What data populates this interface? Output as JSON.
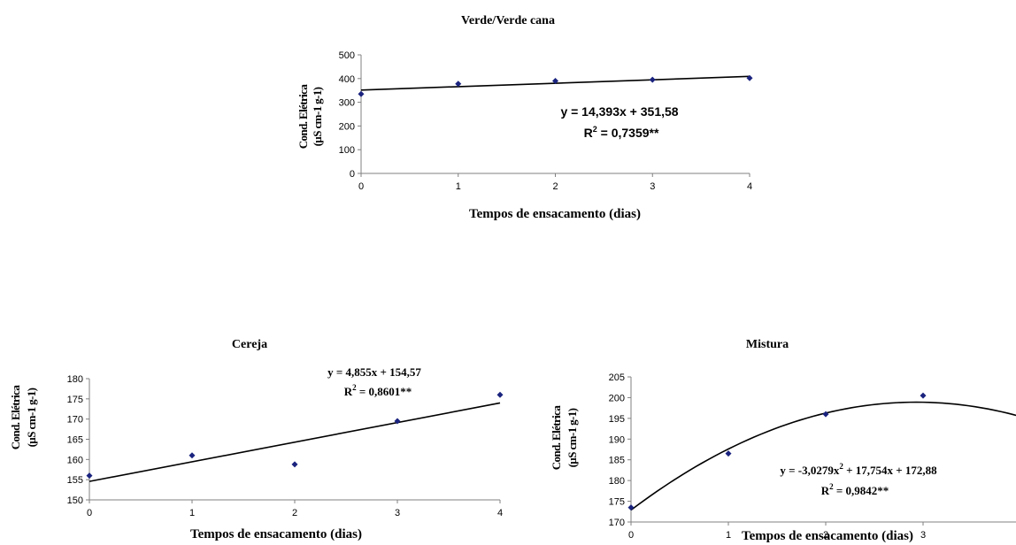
{
  "chart_data": [
    {
      "type": "scatter",
      "title": "Verde/Verde cana",
      "xlabel": "Tempos de ensacamento (dias)",
      "ylabel": [
        "Cond. Elétrica",
        "(µS cm-1 g-1)"
      ],
      "xlim": [
        0,
        4
      ],
      "ylim": [
        0,
        500
      ],
      "xticks": [
        0,
        1,
        2,
        3,
        4
      ],
      "yticks": [
        0,
        100,
        200,
        300,
        400,
        500
      ],
      "points": [
        {
          "x": 0,
          "y": 335
        },
        {
          "x": 1,
          "y": 378
        },
        {
          "x": 2,
          "y": 390
        },
        {
          "x": 3,
          "y": 395
        },
        {
          "x": 4,
          "y": 402
        }
      ],
      "trend": {
        "type": "linear",
        "coefficients": [
          351.58,
          14.393
        ]
      },
      "equation": "y = 14,393x + 351,58",
      "r2_value": " = 0,7359**",
      "equation_font": "sans"
    },
    {
      "type": "scatter",
      "title": "Cereja",
      "xlabel": "Tempos de ensacamento (dias)",
      "ylabel": [
        "Cond. Elétrica",
        "(µS cm-1 g-1)"
      ],
      "xlim": [
        0,
        4
      ],
      "ylim": [
        150,
        180
      ],
      "xticks": [
        0,
        1,
        2,
        3,
        4
      ],
      "yticks": [
        150,
        155,
        160,
        165,
        170,
        175,
        180
      ],
      "points": [
        {
          "x": 0,
          "y": 156
        },
        {
          "x": 1,
          "y": 161
        },
        {
          "x": 2,
          "y": 158.8
        },
        {
          "x": 3,
          "y": 169.5
        },
        {
          "x": 4,
          "y": 176
        }
      ],
      "trend": {
        "type": "linear",
        "coefficients": [
          154.57,
          4.855
        ]
      },
      "equation": "y = 4,855x + 154,57",
      "r2_value": " = 0,8601**",
      "equation_font": "serif"
    },
    {
      "type": "scatter",
      "title": "Mistura",
      "xlabel": "Tempos de ensacamento (dias)",
      "ylabel": [
        "Cond. Elétrica",
        "(µS cm-1 g-1)"
      ],
      "xlim": [
        0,
        4
      ],
      "ylim": [
        170,
        205
      ],
      "xticks": [
        0,
        1,
        2,
        3
      ],
      "yticks": [
        170,
        175,
        180,
        185,
        190,
        195,
        200,
        205
      ],
      "points": [
        {
          "x": 0,
          "y": 173.5
        },
        {
          "x": 1,
          "y": 186.5
        },
        {
          "x": 2,
          "y": 196
        },
        {
          "x": 3,
          "y": 200.5
        }
      ],
      "trend": {
        "type": "quadratic",
        "coefficients": [
          172.88,
          17.754,
          -3.0279
        ]
      },
      "equation": "y = -3,0279x",
      "equation_rest": " + 17,754x + 172,88",
      "r2_value": " = 0,9842**",
      "equation_font": "serif"
    }
  ]
}
